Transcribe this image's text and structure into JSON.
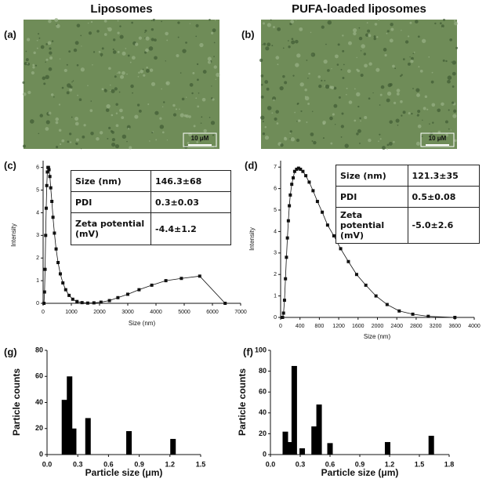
{
  "headings": [
    "Liposomes",
    "PUFA-loaded liposomes"
  ],
  "images": [
    {
      "panel": "(a)",
      "scale_bar": "10 μM"
    },
    {
      "panel": "(b)",
      "scale_bar": "10 μM"
    }
  ],
  "chart_data": [
    {
      "type": "line",
      "panel": "(c)",
      "xlabel": "Size (nm)",
      "ylabel": "Intensity",
      "color": "#111111",
      "x": [
        30,
        50,
        70,
        90,
        110,
        130,
        150,
        170,
        190,
        210,
        240,
        270,
        310,
        350,
        400,
        460,
        530,
        610,
        700,
        800,
        920,
        1050,
        1200,
        1380,
        1580,
        1800,
        2050,
        2350,
        2650,
        3000,
        3400,
        3850,
        4350,
        4900,
        5550,
        6450
      ],
      "values": [
        0,
        0.5,
        1.5,
        3,
        4.2,
        5.2,
        5.8,
        6.0,
        6.0,
        5.9,
        5.6,
        5.1,
        4.5,
        3.8,
        3.1,
        2.4,
        1.8,
        1.3,
        0.9,
        0.6,
        0.35,
        0.18,
        0.08,
        0.03,
        0.01,
        0.02,
        0.05,
        0.12,
        0.25,
        0.4,
        0.6,
        0.8,
        1.0,
        1.1,
        1.2,
        0
      ],
      "xlim": [
        0,
        7000
      ],
      "ylim": [
        0,
        6.3
      ],
      "xticks": [
        0,
        1000,
        2000,
        3000,
        4000,
        5000,
        6000,
        7000
      ],
      "yticks": [
        0,
        1,
        2,
        3,
        4,
        5,
        6
      ],
      "table": [
        [
          "Size (nm)",
          "146.3±68"
        ],
        [
          "PDI",
          "0.3±0.03"
        ],
        [
          "Zeta potential (mV)",
          "-4.4±1.2"
        ]
      ]
    },
    {
      "type": "line",
      "panel": "(d)",
      "xlabel": "Size (nm)",
      "ylabel": "Intensity",
      "color": "#111111",
      "x": [
        40,
        60,
        80,
        100,
        120,
        140,
        160,
        180,
        200,
        230,
        260,
        290,
        330,
        370,
        410,
        460,
        520,
        590,
        670,
        760,
        860,
        970,
        1100,
        1240,
        1400,
        1570,
        1760,
        1970,
        2200,
        2450,
        2730,
        3050,
        3600
      ],
      "values": [
        0,
        0.2,
        0.8,
        1.8,
        2.8,
        3.7,
        4.5,
        5.2,
        5.7,
        6.2,
        6.5,
        6.8,
        6.9,
        6.95,
        6.9,
        6.8,
        6.6,
        6.3,
        5.9,
        5.4,
        4.9,
        4.3,
        3.8,
        3.2,
        2.6,
        2.0,
        1.5,
        1.0,
        0.6,
        0.3,
        0.15,
        0.05,
        0
      ],
      "xlim": [
        0,
        4000
      ],
      "ylim": [
        0,
        7.3
      ],
      "xticks": [
        0,
        400,
        800,
        1200,
        1600,
        2000,
        2400,
        2800,
        3200,
        3600,
        4000
      ],
      "yticks": [
        0,
        1,
        2,
        3,
        4,
        5,
        6,
        7
      ],
      "table": [
        [
          "Size (nm)",
          "121.3±35"
        ],
        [
          "PDI",
          "0.5±0.08"
        ],
        [
          "Zeta potential (mV)",
          "-5.0±2.6"
        ]
      ]
    },
    {
      "type": "bar",
      "panel": "(g)",
      "xlabel": "Particle size (μm)",
      "ylabel": "Particle counts",
      "color": "#000000",
      "x": [
        0.17,
        0.22,
        0.26,
        0.4,
        0.8,
        1.23
      ],
      "values": [
        42,
        60,
        20,
        28,
        18,
        12
      ],
      "xlim": [
        0,
        1.5
      ],
      "ylim": [
        0,
        80
      ],
      "xticks": [
        {
          "value": 0,
          "label": "0.0"
        },
        0.3,
        0.6,
        0.9,
        1.2,
        1.5
      ],
      "yticks": [
        0,
        20,
        40,
        60,
        80
      ]
    },
    {
      "type": "bar",
      "panel": "(f)",
      "xlabel": "Particle size (μm)",
      "ylabel": "Particle counts",
      "color": "#000000",
      "x": [
        0.15,
        0.19,
        0.24,
        0.32,
        0.44,
        0.49,
        0.6,
        1.18,
        1.62
      ],
      "values": [
        22,
        12,
        85,
        6,
        27,
        48,
        11,
        12,
        18
      ],
      "xlim": [
        0,
        1.8
      ],
      "ylim": [
        0,
        100
      ],
      "xticks": [
        {
          "value": 0,
          "label": "0.0"
        },
        0.3,
        0.6,
        0.9,
        1.2,
        1.5,
        1.8
      ],
      "yticks": [
        0,
        20,
        40,
        60,
        80,
        100
      ]
    }
  ]
}
